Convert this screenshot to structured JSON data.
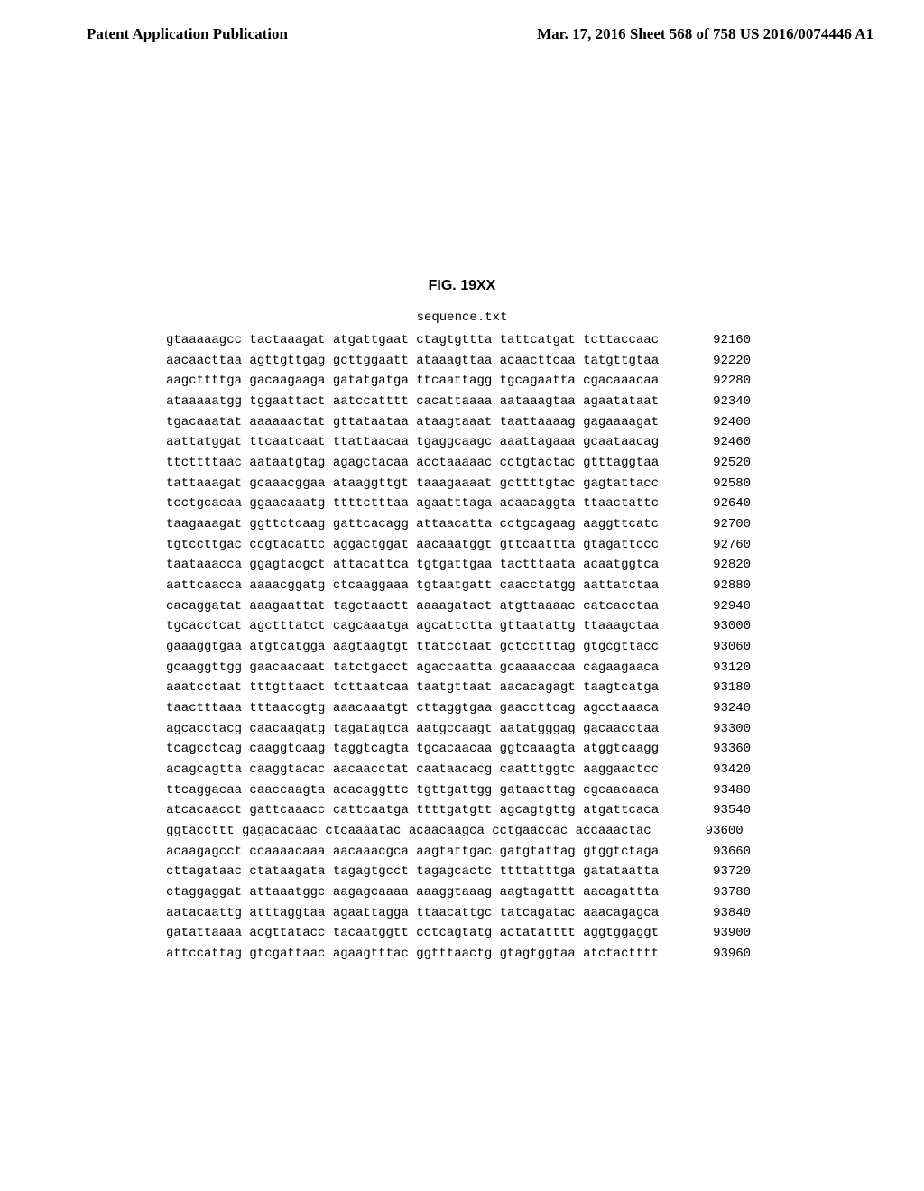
{
  "header": {
    "left": "Patent Application Publication",
    "right": "Mar. 17, 2016  Sheet 568 of 758   US 2016/0074446 A1"
  },
  "figure_label": "FIG. 19XX",
  "filename": "sequence.txt",
  "sequence": {
    "font_family": "Courier New",
    "font_size_pt": 10,
    "line_height": 1.62,
    "group_size": 10,
    "groups_per_line": 6,
    "lines": [
      {
        "groups": [
          "gtaaaaagcc",
          "tactaaagat",
          "atgattgaat",
          "ctagtgttta",
          "tattcatgat",
          "tcttaccaac"
        ],
        "pos": 92160
      },
      {
        "groups": [
          "aacaacttaa",
          "agttgttgag",
          "gcttggaatt",
          "ataaagttaa",
          "acaacttcaa",
          "tatgttgtaa"
        ],
        "pos": 92220
      },
      {
        "groups": [
          "aagcttttga",
          "gacaagaaga",
          "gatatgatga",
          "ttcaattagg",
          "tgcagaatta",
          "cgacaaacaa"
        ],
        "pos": 92280
      },
      {
        "groups": [
          "ataaaaatgg",
          "tggaattact",
          "aatccatttt",
          "cacattaaaa",
          "aataaagtaa",
          "agaatataat"
        ],
        "pos": 92340
      },
      {
        "groups": [
          "tgacaaatat",
          "aaaaaactat",
          "gttataataa",
          "ataagtaaat",
          "taattaaaag",
          "gagaaaagat"
        ],
        "pos": 92400
      },
      {
        "groups": [
          "aattatggat",
          "ttcaatcaat",
          "ttattaacaa",
          "tgaggcaagc",
          "aaattagaaa",
          "gcaataacag"
        ],
        "pos": 92460
      },
      {
        "groups": [
          "ttcttttaac",
          "aataatgtag",
          "agagctacaa",
          "acctaaaaac",
          "cctgtactac",
          "gtttaggtaa"
        ],
        "pos": 92520
      },
      {
        "groups": [
          "tattaaagat",
          "gcaaacggaa",
          "ataaggttgt",
          "taaagaaaat",
          "gcttttgtac",
          "gagtattacc"
        ],
        "pos": 92580
      },
      {
        "groups": [
          "tcctgcacaa",
          "ggaacaaatg",
          "ttttctttaa",
          "agaatttaga",
          "acaacaggta",
          "ttaactattc"
        ],
        "pos": 92640
      },
      {
        "groups": [
          "taagaaagat",
          "ggttctcaag",
          "gattcacagg",
          "attaacatta",
          "cctgcagaag",
          "aaggttcatc"
        ],
        "pos": 92700
      },
      {
        "groups": [
          "tgtccttgac",
          "ccgtacattc",
          "aggactggat",
          "aacaaatggt",
          "gttcaattta",
          "gtagattccc"
        ],
        "pos": 92760
      },
      {
        "groups": [
          "taataaacca",
          "ggagtacgct",
          "attacattca",
          "tgtgattgaa",
          "tactttaata",
          "acaatggtca"
        ],
        "pos": 92820
      },
      {
        "groups": [
          "aattcaacca",
          "aaaacggatg",
          "ctcaaggaaa",
          "tgtaatgatt",
          "caacctatgg",
          "aattatctaa"
        ],
        "pos": 92880
      },
      {
        "groups": [
          "cacaggatat",
          "aaagaattat",
          "tagctaactt",
          "aaaagatact",
          "atgttaaaac",
          "catcacctaa"
        ],
        "pos": 92940
      },
      {
        "groups": [
          "tgcacctcat",
          "agctttatct",
          "cagcaaatga",
          "agcattctta",
          "gttaatattg",
          "ttaaagctaa"
        ],
        "pos": 93000
      },
      {
        "groups": [
          "gaaaggtgaa",
          "atgtcatgga",
          "aagtaagtgt",
          "ttatcctaat",
          "gctcctttag",
          "gtgcgttacc"
        ],
        "pos": 93060
      },
      {
        "groups": [
          "gcaaggttgg",
          "gaacaacaat",
          "tatctgacct",
          "agaccaatta",
          "gcaaaaccaa",
          "cagaagaaca"
        ],
        "pos": 93120
      },
      {
        "groups": [
          "aaatcctaat",
          "tttgttaact",
          "tcttaatcaa",
          "taatgttaat",
          "aacacagagt",
          "taagtcatga"
        ],
        "pos": 93180
      },
      {
        "groups": [
          "taactttaaa",
          "tttaaccgtg",
          "aaacaaatgt",
          "cttaggtgaa",
          "gaaccttcag",
          "agcctaaaca"
        ],
        "pos": 93240
      },
      {
        "groups": [
          "agcacctacg",
          "caacaagatg",
          "tagatagtca",
          "aatgccaagt",
          "aatatgggag",
          "gacaacctaa"
        ],
        "pos": 93300
      },
      {
        "groups": [
          "tcagcctcag",
          "caaggtcaag",
          "taggtcagta",
          "tgcacaacaa",
          "ggtcaaagta",
          "atggtcaagg"
        ],
        "pos": 93360
      },
      {
        "groups": [
          "acagcagtta",
          "caaggtacac",
          "aacaacctat",
          "caataacacg",
          "caatttggtc",
          "aaggaactcc"
        ],
        "pos": 93420
      },
      {
        "groups": [
          "ttcaggacaa",
          "caaccaagta",
          "acacaggttc",
          "tgttgattgg",
          "gataacttag",
          "cgcaacaaca"
        ],
        "pos": 93480
      },
      {
        "groups": [
          "atcacaacct",
          "gattcaaacc",
          "cattcaatga",
          "ttttgatgtt",
          "agcagtgttg",
          "atgattcaca"
        ],
        "pos": 93540
      },
      {
        "groups": [
          "ggtaccttt",
          "gagacacaac",
          "ctcaaaatac",
          "acaacaagca",
          "cctgaaccac",
          "accaaactac"
        ],
        "pos": 93600
      },
      {
        "groups": [
          "acaagagcct",
          "ccaaaacaaa",
          "aacaaacgca",
          "aagtattgac",
          "gatgtattag",
          "gtggtctaga"
        ],
        "pos": 93660
      },
      {
        "groups": [
          "cttagataac",
          "ctataagata",
          "tagagtgcct",
          "tagagcactc",
          "ttttatttga",
          "gatataatta"
        ],
        "pos": 93720
      },
      {
        "groups": [
          "ctaggaggat",
          "attaaatggc",
          "aagagcaaaa",
          "aaaggtaaag",
          "aagtagattt",
          "aacagattta"
        ],
        "pos": 93780
      },
      {
        "groups": [
          "aatacaattg",
          "atttaggtaa",
          "agaattagga",
          "ttaacattgc",
          "tatcagatac",
          "aaacagagca"
        ],
        "pos": 93840
      },
      {
        "groups": [
          "gatattaaaa",
          "acgttatacc",
          "tacaatggtt",
          "cctcagtatg",
          "actatatttt",
          "aggtggaggt"
        ],
        "pos": 93900
      },
      {
        "groups": [
          "attccattag",
          "gtcgattaac",
          "agaagtttac",
          "ggtttaactg",
          "gtagtggtaa",
          "atctactttt"
        ],
        "pos": 93960
      }
    ]
  }
}
